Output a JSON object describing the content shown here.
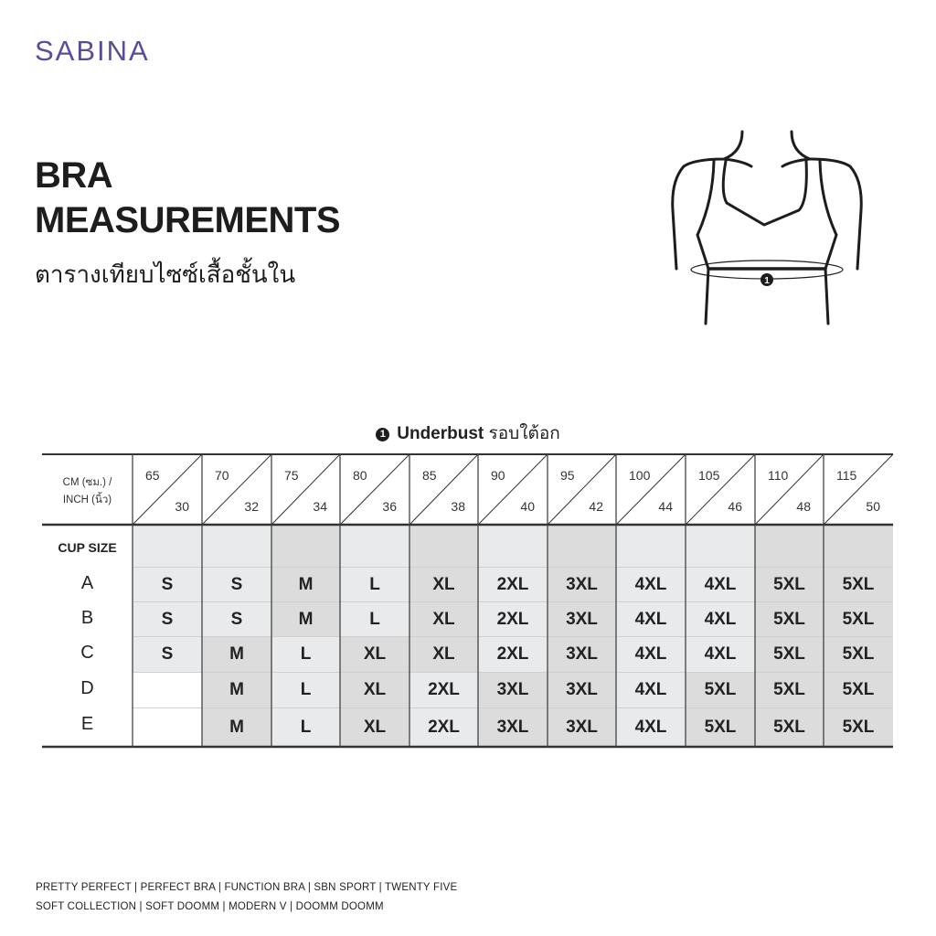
{
  "brand": "SABINA",
  "title_line1": "BRA",
  "title_line2": "MEASUREMENTS",
  "subtitle_thai": "ตารางเทียบไซซ์เสื้อชั้นใน",
  "illustration": {
    "marker": "1"
  },
  "legend": {
    "number": "1",
    "label": "Underbust",
    "thai": "รอบใต้อก"
  },
  "table": {
    "corner_line1": "CM (ซม.) /",
    "corner_line2": "INCH (นิ้ว)",
    "cup_size_label": "CUP SIZE",
    "columns": [
      {
        "cm": "65",
        "inch": "30"
      },
      {
        "cm": "70",
        "inch": "32"
      },
      {
        "cm": "75",
        "inch": "34"
      },
      {
        "cm": "80",
        "inch": "36"
      },
      {
        "cm": "85",
        "inch": "38"
      },
      {
        "cm": "90",
        "inch": "40"
      },
      {
        "cm": "95",
        "inch": "42"
      },
      {
        "cm": "100",
        "inch": "44"
      },
      {
        "cm": "105",
        "inch": "46"
      },
      {
        "cm": "110",
        "inch": "48"
      },
      {
        "cm": "115",
        "inch": "50"
      }
    ],
    "rows": [
      {
        "cup": "A",
        "sizes": [
          "S",
          "S",
          "M",
          "L",
          "XL",
          "2XL",
          "3XL",
          "4XL",
          "4XL",
          "5XL",
          "5XL"
        ]
      },
      {
        "cup": "B",
        "sizes": [
          "S",
          "S",
          "M",
          "L",
          "XL",
          "2XL",
          "3XL",
          "4XL",
          "4XL",
          "5XL",
          "5XL"
        ]
      },
      {
        "cup": "C",
        "sizes": [
          "S",
          "M",
          "L",
          "XL",
          "XL",
          "2XL",
          "3XL",
          "4XL",
          "4XL",
          "5XL",
          "5XL"
        ]
      },
      {
        "cup": "D",
        "sizes": [
          "",
          "M",
          "L",
          "XL",
          "2XL",
          "3XL",
          "3XL",
          "4XL",
          "5XL",
          "5XL",
          "5XL"
        ]
      },
      {
        "cup": "E",
        "sizes": [
          "",
          "M",
          "L",
          "XL",
          "2XL",
          "3XL",
          "3XL",
          "4XL",
          "5XL",
          "5XL",
          "5XL"
        ]
      }
    ],
    "colors": {
      "light": "#e9eaec",
      "dark": "#dcdcdc",
      "line": "#333333"
    }
  },
  "footer": {
    "line1": "PRETTY PERFECT |  PERFECT BRA |  FUNCTION BRA |  SBN SPORT |  TWENTY FIVE",
    "line2": "SOFT COLLECTION |  SOFT DOOMM |  MODERN V |  DOOMM DOOMM"
  }
}
